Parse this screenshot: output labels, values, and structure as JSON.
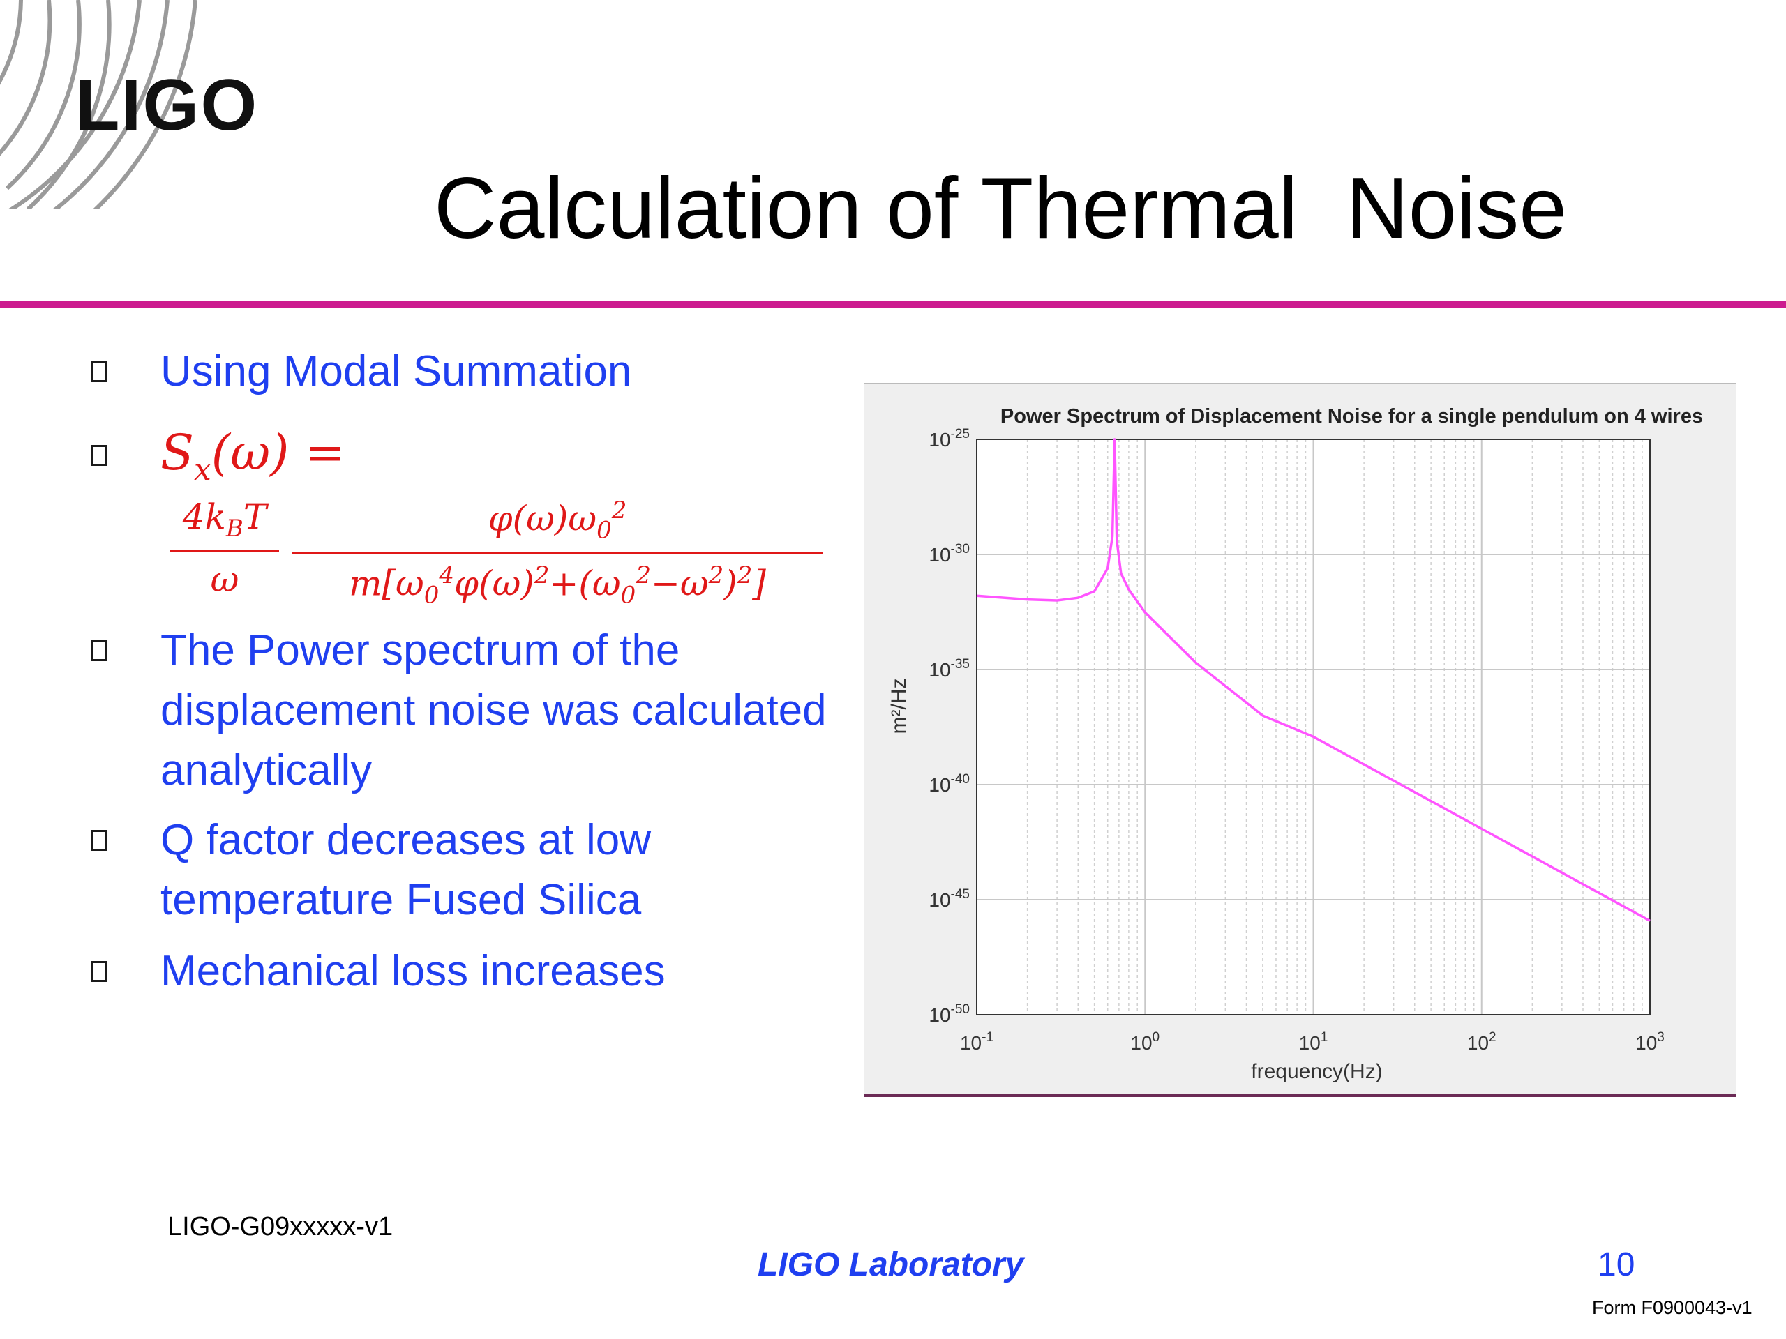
{
  "header": {
    "logo_text": "LIGO",
    "title": "Calculation of Thermal  Noise",
    "accent_color": "#cc1b8f"
  },
  "bullets": [
    {
      "text": "Using Modal Summation"
    },
    {
      "equation": {
        "lhs": "Sx(ω) =",
        "frac1_num": "4kBT",
        "frac1_den": "ω",
        "frac2_num": "φ(ω)ω0²",
        "frac2_den": "m[ω0⁴φ(ω)²+(ω0²−ω²)²]"
      }
    },
    {
      "text": "The Power spectrum of the displacement noise was calculated analytically"
    },
    {
      "text": "Q factor decreases at low temperature Fused Silica"
    },
    {
      "text": "Mechanical loss increases"
    }
  ],
  "footer": {
    "doc_id": "LIGO-G09xxxxx-v1",
    "lab": "LIGO Laboratory",
    "page": "10",
    "form": "Form F0900043-v1"
  },
  "chart_data": {
    "type": "line",
    "title": "Power Spectrum of Displacement Noise for a single pendulum on 4 wires",
    "xlabel": "frequency(Hz)",
    "ylabel": "m²/Hz",
    "xscale": "log",
    "yscale": "log",
    "xlim": [
      0.1,
      1000
    ],
    "ylim": [
      1e-50,
      1e-25
    ],
    "grid": true,
    "x_ticks": [
      "10^-1",
      "10^0",
      "10^1",
      "10^2",
      "10^3"
    ],
    "y_ticks": [
      "10^-25",
      "10^-30",
      "10^-35",
      "10^-40",
      "10^-45",
      "10^-50"
    ],
    "line_color": "#ff55ff",
    "series": [
      {
        "x": [
          0.1,
          0.2,
          0.3,
          0.4,
          0.5,
          0.6,
          0.64,
          0.66,
          0.68,
          0.72,
          0.8,
          1.0,
          2.0,
          5.0,
          10,
          100,
          1000
        ],
        "y": [
          1.6e-32,
          1.1e-32,
          1e-32,
          1.3e-32,
          2.5e-32,
          2.5e-31,
          6e-30,
          1e-25,
          4e-30,
          1.5e-31,
          3e-32,
          3e-33,
          2e-35,
          1e-37,
          1.2e-38,
          1.2e-42,
          1.2e-46
        ]
      }
    ]
  }
}
